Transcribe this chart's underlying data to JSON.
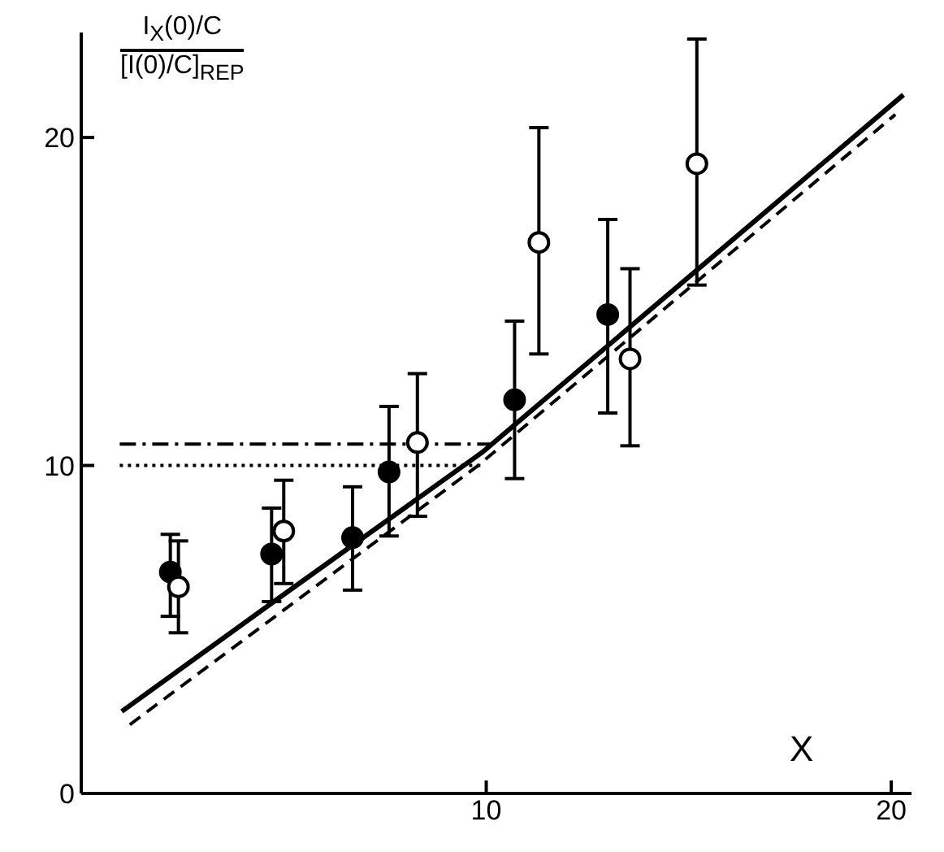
{
  "chart_data": {
    "type": "scatter",
    "ylabel": "I$_{X}$(0)/C\n[I(0)/C]$_{REP}$",
    "xlabel": "X",
    "xlim": [
      0,
      20.5
    ],
    "ylim": [
      0,
      23.2
    ],
    "xticks": [
      10,
      20
    ],
    "yticks": [
      0,
      10,
      20
    ],
    "series": [
      {
        "type": "line",
        "color": "#000000",
        "line_style": "solid",
        "marker": "none",
        "x": [
          1.0,
          4.7,
          9.9,
          20.3
        ],
        "values": [
          2.5,
          5.8,
          10.4,
          21.3
        ]
      },
      {
        "type": "line",
        "color": "#000000",
        "line_style": "dashed",
        "marker": "none",
        "x": [
          1.2,
          9.8,
          20.1
        ],
        "values": [
          2.1,
          10.0,
          20.7
        ]
      },
      {
        "type": "line",
        "color": "#000000",
        "line_style": "dashdot",
        "marker": "none",
        "x": [
          0.95,
          10.1
        ],
        "values": [
          10.65,
          10.65
        ]
      },
      {
        "type": "line",
        "color": "#000000",
        "line_style": "dotted",
        "marker": "none",
        "x": [
          0.95,
          9.9
        ],
        "values": [
          10.0,
          10.0
        ]
      },
      {
        "color": "#000000",
        "marker": "circle",
        "x": [
          2.2,
          4.7,
          6.7,
          7.6,
          10.7,
          13.0
        ],
        "values": [
          6.75,
          7.3,
          7.8,
          9.8,
          12.0,
          14.6
        ],
        "errors": [
          [
            5.4,
            7.9
          ],
          [
            5.85,
            8.7
          ],
          [
            6.2,
            9.35
          ],
          [
            7.85,
            11.8
          ],
          [
            9.6,
            14.4
          ],
          [
            11.6,
            17.5
          ]
        ]
      },
      {
        "color": "#ffffff",
        "marker": "circle",
        "x": [
          2.4,
          5.0,
          8.3,
          11.3,
          13.55,
          15.2
        ],
        "values": [
          6.3,
          8.0,
          10.7,
          16.8,
          13.25,
          19.2
        ],
        "errors": [
          [
            4.9,
            7.7
          ],
          [
            6.4,
            9.55
          ],
          [
            8.45,
            12.8
          ],
          [
            13.4,
            20.3
          ],
          [
            10.6,
            16.0
          ],
          [
            15.5,
            23.0
          ]
        ]
      }
    ]
  }
}
